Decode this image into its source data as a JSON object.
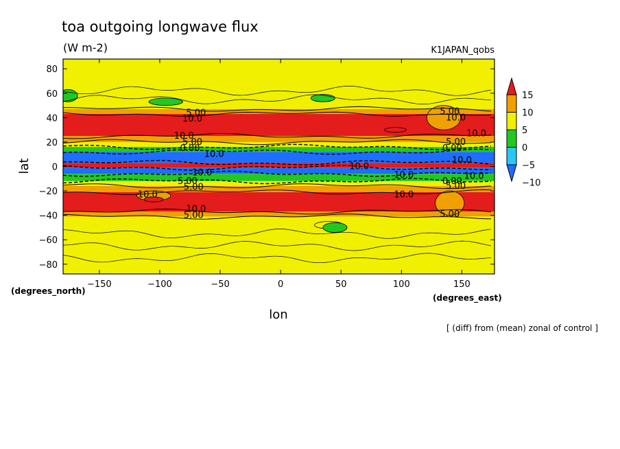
{
  "chart_data": {
    "type": "heatmap",
    "title": "toa outgoing longwave flux",
    "subtitle": "(W m-2)",
    "run_label": "K1JAPAN_qobs",
    "xlabel": "lon",
    "ylabel": "lat",
    "x_units": "(degrees_east)",
    "y_units": "(degrees_north)",
    "footnote": "[ (diff) from (mean) zonal of control ]",
    "xlim": [
      -180,
      177
    ],
    "ylim": [
      -88,
      88
    ],
    "x_ticks": [
      -150,
      -100,
      -50,
      0,
      50,
      100,
      150
    ],
    "y_ticks": [
      -80,
      -60,
      -40,
      -20,
      0,
      20,
      40,
      60,
      80
    ],
    "colorbar": {
      "labels": [
        "15",
        "10",
        "5",
        "0",
        "-5",
        "-10"
      ],
      "levels": [
        -10,
        -5,
        0,
        5,
        10,
        15
      ],
      "colors": [
        "#1e6eff",
        "#28c8ff",
        "#22c822",
        "#f0f000",
        "#f0a000",
        "#e41c1c"
      ]
    },
    "zonal_bands": [
      {
        "lat_from": 88,
        "lat_to": 47,
        "value": 2.5
      },
      {
        "lat_from": 47,
        "lat_to": 43,
        "value": 7.5
      },
      {
        "lat_from": 43,
        "lat_to": 25,
        "value": 11
      },
      {
        "lat_from": 25,
        "lat_to": 20,
        "value": 7.5
      },
      {
        "lat_from": 20,
        "lat_to": 16,
        "value": 2.5
      },
      {
        "lat_from": 16,
        "lat_to": 12,
        "value": -3
      },
      {
        "lat_from": 12,
        "lat_to": 3,
        "value": -12
      },
      {
        "lat_from": 3,
        "lat_to": -1,
        "value": 17
      },
      {
        "lat_from": -1,
        "lat_to": -6,
        "value": -12
      },
      {
        "lat_from": -6,
        "lat_to": -12,
        "value": -3
      },
      {
        "lat_from": -12,
        "lat_to": -16,
        "value": 2.5
      },
      {
        "lat_from": -16,
        "lat_to": -21,
        "value": 7.5
      },
      {
        "lat_from": -21,
        "lat_to": -37,
        "value": 11
      },
      {
        "lat_from": -37,
        "lat_to": -41,
        "value": 7.5
      },
      {
        "lat_from": -41,
        "lat_to": -88,
        "value": 2.5
      }
    ],
    "features": [
      {
        "lon": -176,
        "lat": 58,
        "dlon": 8,
        "dlat": 5,
        "value": -3
      },
      {
        "lon": -95,
        "lat": 53,
        "dlon": 14,
        "dlat": 3,
        "value": -3
      },
      {
        "lon": 35,
        "lat": 56,
        "dlon": 10,
        "dlat": 3,
        "value": -3
      },
      {
        "lon": 95,
        "lat": 30,
        "dlon": 9,
        "dlat": 2,
        "value": 17
      },
      {
        "lon": 135,
        "lat": 40,
        "dlon": 14,
        "dlat": 10,
        "value": 7.5
      },
      {
        "lon": -105,
        "lat": -24,
        "dlon": 14,
        "dlat": 4,
        "value": 7.5
      },
      {
        "lon": -105,
        "lat": -27,
        "dlon": 8,
        "dlat": 2,
        "value": 17
      },
      {
        "lon": 40,
        "lat": -48,
        "dlon": 12,
        "dlat": 3,
        "value": 2.5
      },
      {
        "lon": 45,
        "lat": -50,
        "dlon": 10,
        "dlat": 4,
        "value": -3
      },
      {
        "lon": 140,
        "lat": -30,
        "dlon": 12,
        "dlat": 10,
        "value": 7.5
      }
    ],
    "contour_labels": [
      {
        "text": "5.00",
        "lon": -70,
        "lat": 44
      },
      {
        "text": "10.0",
        "lon": -73,
        "lat": 39
      },
      {
        "text": "10.0",
        "lon": -80,
        "lat": 25
      },
      {
        "text": "5.00",
        "lon": -73,
        "lat": 20
      },
      {
        "text": "0.00",
        "lon": -75,
        "lat": 15
      },
      {
        "text": "10.0",
        "lon": -55,
        "lat": 10
      },
      {
        "text": "10.0",
        "lon": -65,
        "lat": -5
      },
      {
        "text": "5.00",
        "lon": -77,
        "lat": -12
      },
      {
        "text": "5.00",
        "lon": -72,
        "lat": -17
      },
      {
        "text": "10.0",
        "lon": -110,
        "lat": -23
      },
      {
        "text": "10.0",
        "lon": -70,
        "lat": -35
      },
      {
        "text": "5.00",
        "lon": -72,
        "lat": -40
      },
      {
        "text": "10.0",
        "lon": 65,
        "lat": 0
      },
      {
        "text": "10.0",
        "lon": 102,
        "lat": -7
      },
      {
        "text": "10.0",
        "lon": 102,
        "lat": -23
      },
      {
        "text": "5.00",
        "lon": 140,
        "lat": 45
      },
      {
        "text": "10.0",
        "lon": 145,
        "lat": 40
      },
      {
        "text": "10.0",
        "lon": 162,
        "lat": 27
      },
      {
        "text": "5.00",
        "lon": 145,
        "lat": 20
      },
      {
        "text": "0.00",
        "lon": 142,
        "lat": 15
      },
      {
        "text": "10.0",
        "lon": 150,
        "lat": 5
      },
      {
        "text": "0.00",
        "lon": 142,
        "lat": -12
      },
      {
        "text": "5.00",
        "lon": 145,
        "lat": -16
      },
      {
        "text": "10.0",
        "lon": 160,
        "lat": -8
      },
      {
        "text": "5.00",
        "lon": 140,
        "lat": -39
      }
    ]
  }
}
